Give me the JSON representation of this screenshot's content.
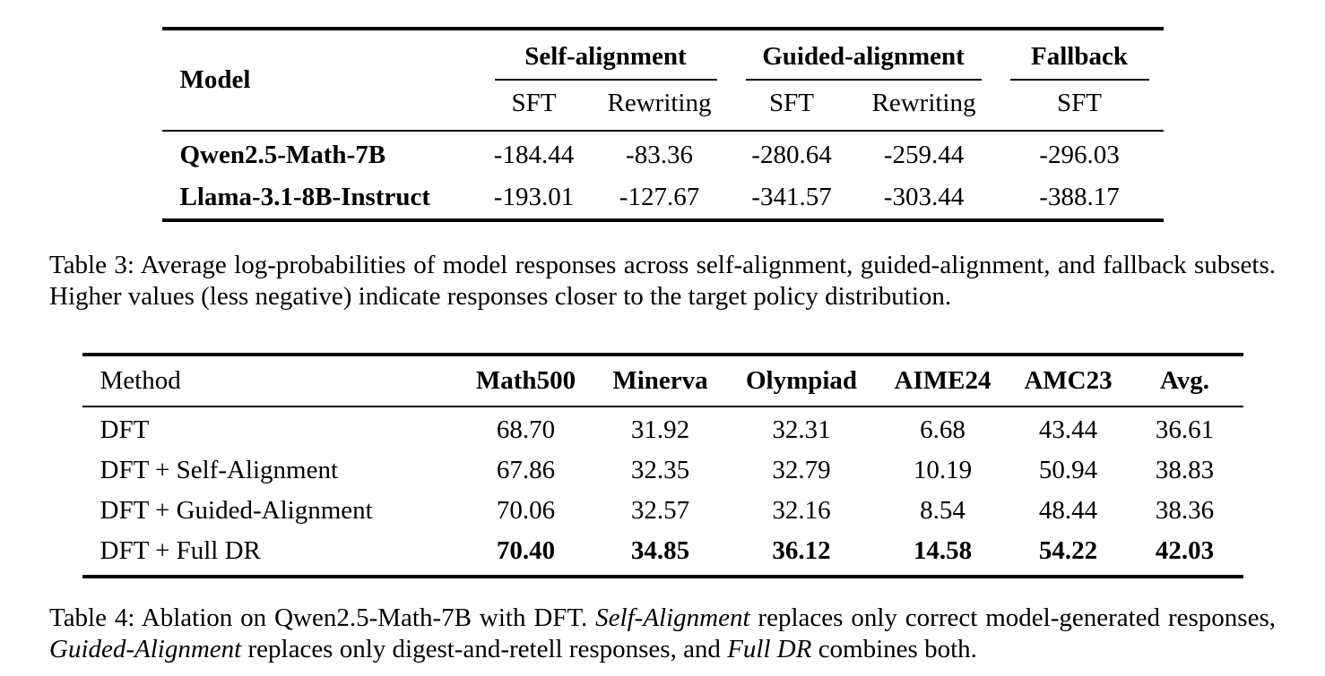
{
  "table3": {
    "header": {
      "model": "Model",
      "groups": [
        {
          "label": "Self-alignment",
          "sub": [
            "SFT",
            "Rewriting"
          ]
        },
        {
          "label": "Guided-alignment",
          "sub": [
            "SFT",
            "Rewriting"
          ]
        },
        {
          "label": "Fallback",
          "sub": [
            "SFT"
          ]
        }
      ]
    },
    "rows": [
      {
        "model": "Qwen2.5-Math-7B",
        "values": [
          "-184.44",
          "-83.36",
          "-280.64",
          "-259.44",
          "-296.03"
        ]
      },
      {
        "model": "Llama-3.1-8B-Instruct",
        "values": [
          "-193.01",
          "-127.67",
          "-341.57",
          "-303.44",
          "-388.17"
        ]
      }
    ],
    "caption": "Table 3: Average log-probabilities of model responses across self-alignment, guided-alignment, and fallback subsets. Higher values (less negative) indicate responses closer to the target policy distribution."
  },
  "table4": {
    "headers": [
      "Method",
      "Math500",
      "Minerva",
      "Olympiad",
      "AIME24",
      "AMC23",
      "Avg."
    ],
    "rows": [
      {
        "method": "DFT",
        "values": [
          "68.70",
          "31.92",
          "32.31",
          "6.68",
          "43.44",
          "36.61"
        ],
        "bold": false
      },
      {
        "method": "DFT + Self-Alignment",
        "values": [
          "67.86",
          "32.35",
          "32.79",
          "10.19",
          "50.94",
          "38.83"
        ],
        "bold": false
      },
      {
        "method": "DFT + Guided-Alignment",
        "values": [
          "70.06",
          "32.57",
          "32.16",
          "8.54",
          "48.44",
          "38.36"
        ],
        "bold": false
      },
      {
        "method": "DFT + Full DR",
        "values": [
          "70.40",
          "34.85",
          "36.12",
          "14.58",
          "54.22",
          "42.03"
        ],
        "bold": true
      }
    ],
    "caption_segments": [
      {
        "text": "Table 4: Ablation on Qwen2.5-Math-7B with DFT. ",
        "italic": false
      },
      {
        "text": "Self-Alignment",
        "italic": true
      },
      {
        "text": " replaces only correct model-generated responses, ",
        "italic": false
      },
      {
        "text": "Guided-Alignment",
        "italic": true
      },
      {
        "text": " replaces only digest-and-retell responses, and ",
        "italic": false
      },
      {
        "text": "Full DR",
        "italic": true
      },
      {
        "text": " combines both.",
        "italic": false
      }
    ]
  }
}
